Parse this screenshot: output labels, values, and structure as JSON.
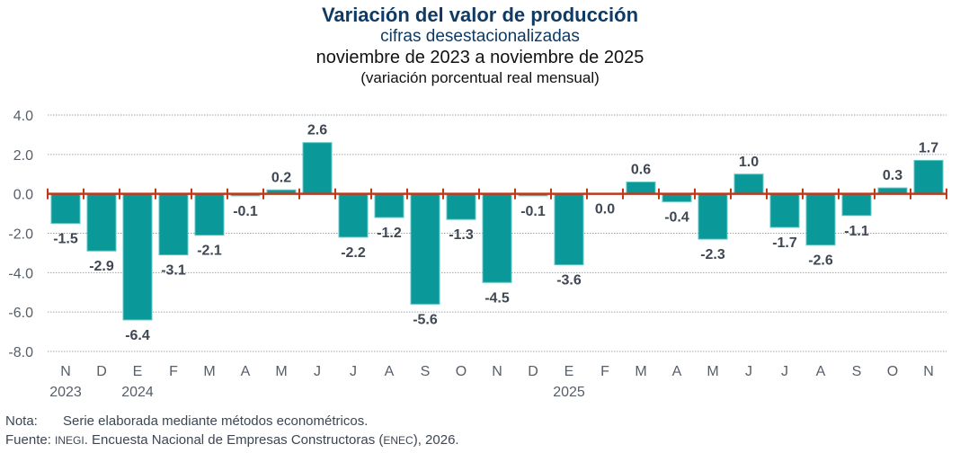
{
  "chart_data": {
    "type": "bar",
    "title": "Variación del valor de producción",
    "subtitle": "cifras desestacionalizadas",
    "period": "noviembre de 2023 a noviembre de 2025",
    "units": "(variación porcentual real mensual)",
    "xlabel": "",
    "ylabel": "",
    "ylim": [
      -8.0,
      4.0
    ],
    "yticks": [
      "4.0",
      "2.0",
      "0.0",
      "-2.0",
      "-4.0",
      "-6.0",
      "-8.0"
    ],
    "ytick_values": [
      4,
      2,
      0,
      -2,
      -4,
      -6,
      -8
    ],
    "grid": true,
    "legend": "none",
    "categories": [
      "N",
      "D",
      "E",
      "F",
      "M",
      "A",
      "M",
      "J",
      "J",
      "A",
      "S",
      "O",
      "N",
      "D",
      "E",
      "F",
      "M",
      "A",
      "M",
      "J",
      "J",
      "A",
      "S",
      "O",
      "N"
    ],
    "year_labels": [
      {
        "index": 0,
        "label": "2023"
      },
      {
        "index": 2,
        "label": "2024"
      },
      {
        "index": 14,
        "label": "2025"
      }
    ],
    "values": [
      -1.5,
      -2.9,
      -6.4,
      -3.1,
      -2.1,
      -0.1,
      0.2,
      2.6,
      -2.2,
      -1.2,
      -5.6,
      -1.3,
      -4.5,
      -0.1,
      -3.6,
      0.0,
      0.6,
      -0.4,
      -2.3,
      1.0,
      -1.7,
      -2.6,
      -1.1,
      0.3,
      1.7
    ],
    "data_labels": [
      "-1.5",
      "-2.9",
      "-6.4",
      "-3.1",
      "-2.1",
      "-0.1",
      "0.2",
      "2.6",
      "-2.2",
      "-1.2",
      "-5.6",
      "-1.3",
      "-4.5",
      "-0.1",
      "-3.6",
      "0.0",
      "0.6",
      "-0.4",
      "-2.3",
      "1.0",
      "-1.7",
      "-2.6",
      "-1.1",
      "0.3",
      "1.7"
    ],
    "colors": {
      "bar": "#0a9898",
      "bar_edge": "#5cc8c8",
      "zero_axis": "#c0391b",
      "grid": "#9aa3ad",
      "tick_text": "#555e69",
      "label_text": "#3f4753"
    }
  },
  "footer": {
    "note_label": "Nota:",
    "note_text": "Serie elaborada mediante métodos econométricos.",
    "source_label": "Fuente:",
    "source_org": "INEGI",
    "source_text_1": ". Encuesta Nacional de Empresas Constructoras (",
    "source_abbr": "ENEC",
    "source_text_2": "), 2026."
  }
}
